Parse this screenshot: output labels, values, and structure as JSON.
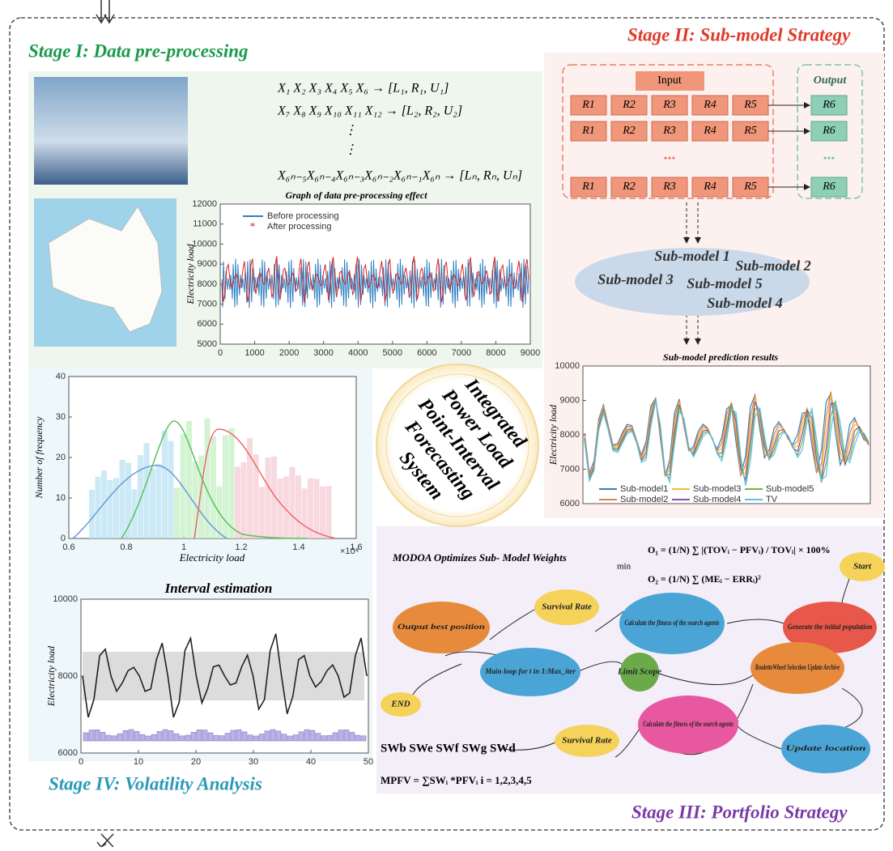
{
  "stages": {
    "s1": "Stage I: Data pre-processing",
    "s2": "Stage II: Sub-model Strategy",
    "s3": "Stage III: Portfolio Strategy",
    "s4": "Stage IV: Volatility Analysis"
  },
  "formulas": [
    "X₁  X₂  X₃  X₄  X₅  X₆ → [L₁, R₁, U₁]",
    "X₇  X₈  X₉  X₁₀  X₁₁  X₁₂ → [L₂, R₂, U₂]",
    "⋮",
    "⋮",
    "X₆ₙ₋₅X₆ₙ₋₄X₆ₙ₋₃X₆ₙ₋₂X₆ₙ₋₁X₆ₙ → [Lₙ, Rₙ, Uₙ]"
  ],
  "preprocess_chart": {
    "title": "Graph of data pre-processing effect",
    "ylabel": "Electricity load",
    "yticks": [
      5000,
      6000,
      7000,
      8000,
      9000,
      10000,
      11000,
      12000
    ],
    "xticks": [
      0,
      1000,
      2000,
      3000,
      4000,
      5000,
      6000,
      7000,
      8000,
      9000
    ],
    "legend": [
      "Before processing",
      "After processing"
    ]
  },
  "submodel_grid": {
    "input": "Input",
    "output": "Output",
    "inputs": [
      "R1",
      "R2",
      "R3",
      "R4",
      "R5"
    ],
    "output_cell": "R6",
    "dots": "•••"
  },
  "submodels": [
    "Sub-model 1",
    "Sub-model 2",
    "Sub-model 3",
    "Sub-model 5",
    "Sub-model 4"
  ],
  "prediction_chart": {
    "title": "Sub-model prediction results",
    "ylabel": "Electricity load",
    "yticks": [
      6000,
      7000,
      8000,
      9000,
      10000
    ],
    "legend": [
      "Sub-model1",
      "Sub-model3",
      "Sub-model5",
      "Sub-model2",
      "Sub-model4",
      "TV"
    ]
  },
  "center_title": [
    "Integrated",
    "Power Load",
    "Point-Interval",
    "Forecasting",
    "System"
  ],
  "histogram": {
    "ylabel": "Number of frequency",
    "xlabel": "Electricity load",
    "yticks": [
      0,
      10,
      20,
      30,
      40
    ],
    "xticks": [
      0.6,
      0.8,
      1,
      1.2,
      1.4,
      1.6
    ],
    "multiplier": "×10⁴"
  },
  "interval_chart": {
    "title": "Interval estimation",
    "ylabel": "Electricity load",
    "yticks": [
      6000,
      8000,
      10000
    ],
    "xticks": [
      0,
      10,
      20,
      30,
      40,
      50
    ]
  },
  "portfolio": {
    "title": "MODOA Optimizes Sub- Model Weights",
    "min": "min",
    "o1": "O₁ = (1/N) ∑ |(TOVᵢ − PFVᵢ) / TOVᵢ| × 100%",
    "o2": "O₂ = (1/N) ∑ (MEᵢ − ERRᵢ)²",
    "nodes": [
      "Start",
      "Generate the initial population",
      "Calculate the fitness of the search agents",
      "Survival Rate",
      "Output best position",
      "Main loop for t in 1:Max_iter",
      "Limit Scope",
      "RouletteWheel Selection Update Archive",
      "END",
      "Calculate the fitness of the search agents",
      "Survival Rate",
      "Update location"
    ],
    "sw": "SWb SWe SWf SWg SWd",
    "mpfv": "MPFV = ∑SWᵢ *PFVᵢ    i = 1,2,3,4,5"
  }
}
